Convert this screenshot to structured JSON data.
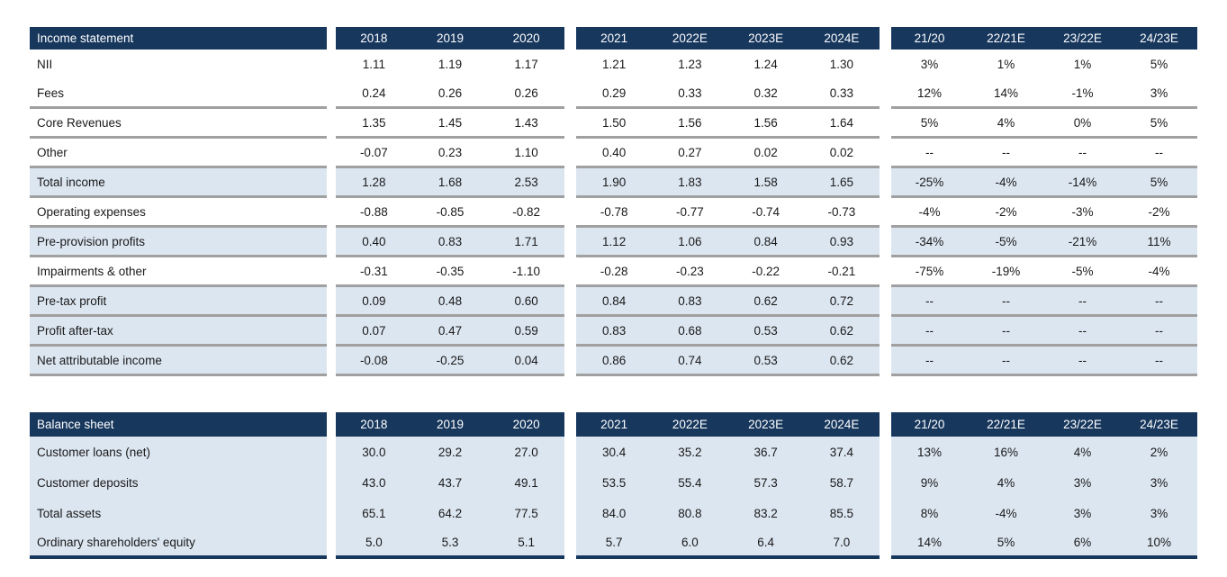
{
  "colors": {
    "header_bg": "#17375D",
    "header_text": "#FFFFFF",
    "shaded_row_bg": "#DCE6F1",
    "separator_gray": "#A0A0A0",
    "body_text": "#1A1A1A"
  },
  "columns": {
    "historical": [
      "2018",
      "2019",
      "2020"
    ],
    "forecast": [
      "2021",
      "2022E",
      "2023E",
      "2024E"
    ],
    "growth": [
      "21/20",
      "22/21E",
      "23/22E",
      "24/23E"
    ]
  },
  "income_statement": {
    "title": "Income statement",
    "rows": [
      {
        "label": "NII",
        "historical": [
          "1.11",
          "1.19",
          "1.17"
        ],
        "forecast": [
          "1.21",
          "1.23",
          "1.24",
          "1.30"
        ],
        "growth": [
          "3%",
          "1%",
          "1%",
          "5%"
        ],
        "shaded": false,
        "line_below": false
      },
      {
        "label": "Fees",
        "historical": [
          "0.24",
          "0.26",
          "0.26"
        ],
        "forecast": [
          "0.29",
          "0.33",
          "0.32",
          "0.33"
        ],
        "growth": [
          "12%",
          "14%",
          "-1%",
          "3%"
        ],
        "shaded": false,
        "line_below": true
      },
      {
        "label": "Core Revenues",
        "historical": [
          "1.35",
          "1.45",
          "1.43"
        ],
        "forecast": [
          "1.50",
          "1.56",
          "1.56",
          "1.64"
        ],
        "growth": [
          "5%",
          "4%",
          "0%",
          "5%"
        ],
        "shaded": false,
        "line_below": true
      },
      {
        "label": "Other",
        "historical": [
          "-0.07",
          "0.23",
          "1.10"
        ],
        "forecast": [
          "0.40",
          "0.27",
          "0.02",
          "0.02"
        ],
        "growth": [
          "--",
          "--",
          "--",
          "--"
        ],
        "shaded": false,
        "line_below": true
      },
      {
        "label": "Total income",
        "historical": [
          "1.28",
          "1.68",
          "2.53"
        ],
        "forecast": [
          "1.90",
          "1.83",
          "1.58",
          "1.65"
        ],
        "growth": [
          "-25%",
          "-4%",
          "-14%",
          "5%"
        ],
        "shaded": true,
        "line_below": true
      },
      {
        "label": "Operating expenses",
        "historical": [
          "-0.88",
          "-0.85",
          "-0.82"
        ],
        "forecast": [
          "-0.78",
          "-0.77",
          "-0.74",
          "-0.73"
        ],
        "growth": [
          "-4%",
          "-2%",
          "-3%",
          "-2%"
        ],
        "shaded": false,
        "line_below": true
      },
      {
        "label": "Pre-provision profits",
        "historical": [
          "0.40",
          "0.83",
          "1.71"
        ],
        "forecast": [
          "1.12",
          "1.06",
          "0.84",
          "0.93"
        ],
        "growth": [
          "-34%",
          "-5%",
          "-21%",
          "11%"
        ],
        "shaded": true,
        "line_below": true
      },
      {
        "label": "Impairments & other",
        "historical": [
          "-0.31",
          "-0.35",
          "-1.10"
        ],
        "forecast": [
          "-0.28",
          "-0.23",
          "-0.22",
          "-0.21"
        ],
        "growth": [
          "-75%",
          "-19%",
          "-5%",
          "-4%"
        ],
        "shaded": false,
        "line_below": true
      },
      {
        "label": "Pre-tax profit",
        "historical": [
          "0.09",
          "0.48",
          "0.60"
        ],
        "forecast": [
          "0.84",
          "0.83",
          "0.62",
          "0.72"
        ],
        "growth": [
          "--",
          "--",
          "--",
          "--"
        ],
        "shaded": true,
        "line_below": true
      },
      {
        "label": "Profit after-tax",
        "historical": [
          "0.07",
          "0.47",
          "0.59"
        ],
        "forecast": [
          "0.83",
          "0.68",
          "0.53",
          "0.62"
        ],
        "growth": [
          "--",
          "--",
          "--",
          "--"
        ],
        "shaded": true,
        "line_below": true
      },
      {
        "label": "Net attributable income",
        "historical": [
          "-0.08",
          "-0.25",
          "0.04"
        ],
        "forecast": [
          "0.86",
          "0.74",
          "0.53",
          "0.62"
        ],
        "growth": [
          "--",
          "--",
          "--",
          "--"
        ],
        "shaded": true,
        "line_below": true
      }
    ]
  },
  "balance_sheet": {
    "title": "Balance sheet",
    "rows": [
      {
        "label": "Customer loans (net)",
        "historical": [
          "30.0",
          "29.2",
          "27.0"
        ],
        "forecast": [
          "30.4",
          "35.2",
          "36.7",
          "37.4"
        ],
        "growth": [
          "13%",
          "16%",
          "4%",
          "2%"
        ],
        "shaded": true,
        "line_below": false
      },
      {
        "label": "Customer deposits",
        "historical": [
          "43.0",
          "43.7",
          "49.1"
        ],
        "forecast": [
          "53.5",
          "55.4",
          "57.3",
          "58.7"
        ],
        "growth": [
          "9%",
          "4%",
          "3%",
          "3%"
        ],
        "shaded": true,
        "line_below": false
      },
      {
        "label": "Total assets",
        "historical": [
          "65.1",
          "64.2",
          "77.5"
        ],
        "forecast": [
          "84.0",
          "80.8",
          "83.2",
          "85.5"
        ],
        "growth": [
          "8%",
          "-4%",
          "3%",
          "3%"
        ],
        "shaded": true,
        "line_below": false
      },
      {
        "label": "Ordinary shareholders' equity",
        "historical": [
          "5.0",
          "5.3",
          "5.1"
        ],
        "forecast": [
          "5.7",
          "6.0",
          "6.4",
          "7.0"
        ],
        "growth": [
          "14%",
          "5%",
          "6%",
          "10%"
        ],
        "shaded": true,
        "line_below": false
      }
    ]
  }
}
